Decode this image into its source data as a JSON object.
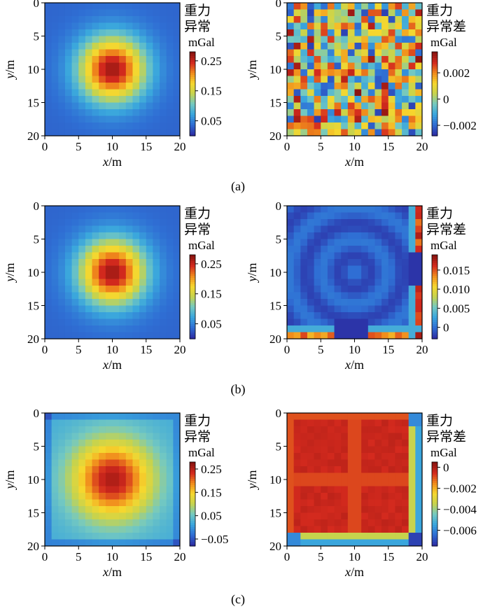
{
  "chart_data": [
    {
      "type": "heatmap",
      "row": "a",
      "panel": "left",
      "pattern": "gaussian",
      "x_ticks": [
        "0",
        "5",
        "10",
        "15",
        "20"
      ],
      "y_ticks": [
        "0",
        "5",
        "10",
        "15",
        "20"
      ],
      "xlabel": "x",
      "xlabel_unit": "/m",
      "ylabel": "y",
      "ylabel_unit": "/m",
      "cbar_title": [
        "重力",
        "异常"
      ],
      "cbar_unit": "mGal",
      "cbar_ticks": [
        "0.25",
        "0.15",
        "0.05"
      ],
      "cbar_range": [
        0.0,
        0.28
      ],
      "colormap": [
        "#2c2fa5",
        "#2f6fd4",
        "#3aa6dd",
        "#74c9c1",
        "#c6d34d",
        "#f6d72e",
        "#f08b1c",
        "#d42a1e",
        "#8a1410"
      ]
    },
    {
      "type": "heatmap",
      "row": "a",
      "panel": "right",
      "pattern": "noise",
      "x_ticks": [
        "0",
        "5",
        "10",
        "15",
        "20"
      ],
      "y_ticks": [
        "0",
        "5",
        "10",
        "15",
        "20"
      ],
      "xlabel": "x",
      "xlabel_unit": "/m",
      "ylabel": "y",
      "ylabel_unit": "/m",
      "cbar_title": [
        "重力",
        "异常差"
      ],
      "cbar_unit": "mGal",
      "cbar_ticks": [
        "0.002",
        "0",
        "−0.002"
      ],
      "cbar_range": [
        -0.0028,
        0.0036
      ]
    },
    {
      "type": "heatmap",
      "row": "b",
      "panel": "left",
      "pattern": "gaussian",
      "x_ticks": [
        "0",
        "5",
        "10",
        "15",
        "20"
      ],
      "y_ticks": [
        "0",
        "5",
        "10",
        "15",
        "20"
      ],
      "xlabel": "x",
      "xlabel_unit": "/m",
      "ylabel": "y",
      "ylabel_unit": "/m",
      "cbar_title": [
        "重力",
        "异常"
      ],
      "cbar_unit": "mGal",
      "cbar_ticks": [
        "0.25",
        "0.15",
        "0.05"
      ],
      "cbar_range": [
        0.0,
        0.28
      ]
    },
    {
      "type": "heatmap",
      "row": "b",
      "panel": "right",
      "pattern": "edge_positive",
      "x_ticks": [
        "0",
        "5",
        "10",
        "15",
        "20"
      ],
      "y_ticks": [
        "0",
        "5",
        "10",
        "15",
        "20"
      ],
      "xlabel": "x",
      "xlabel_unit": "/m",
      "ylabel": "y",
      "ylabel_unit": "/m",
      "cbar_title": [
        "重力",
        "异常差"
      ],
      "cbar_unit": "mGal",
      "cbar_ticks": [
        "0.015",
        "0.010",
        "0.005",
        "0"
      ],
      "cbar_range": [
        -0.003,
        0.019
      ]
    },
    {
      "type": "heatmap",
      "row": "c",
      "panel": "left",
      "pattern": "gaussian_offset",
      "x_ticks": [
        "0",
        "5",
        "10",
        "15",
        "20"
      ],
      "y_ticks": [
        "0",
        "5",
        "10",
        "15",
        "20"
      ],
      "xlabel": "x",
      "xlabel_unit": "/m",
      "ylabel": "y",
      "ylabel_unit": "/m",
      "cbar_title": [
        "重力",
        "异常"
      ],
      "cbar_unit": "mGal",
      "cbar_ticks": [
        "0.25",
        "0.15",
        "0.05",
        "−0.05"
      ],
      "cbar_range": [
        -0.08,
        0.28
      ]
    },
    {
      "type": "heatmap",
      "row": "c",
      "panel": "right",
      "pattern": "edge_negative",
      "x_ticks": [
        "0",
        "5",
        "10",
        "15",
        "20"
      ],
      "y_ticks": [
        "0",
        "5",
        "10",
        "15",
        "20"
      ],
      "xlabel": "x",
      "xlabel_unit": "/m",
      "ylabel": "y",
      "ylabel_unit": "/m",
      "cbar_title": [
        "重力",
        "异常差"
      ],
      "cbar_unit": "mGal",
      "cbar_ticks": [
        "0",
        "−0.002",
        "−0.004",
        "−0.006"
      ],
      "cbar_range": [
        -0.0075,
        0.0005
      ]
    }
  ],
  "captions": [
    "(a)",
    "(b)",
    "(c)"
  ]
}
